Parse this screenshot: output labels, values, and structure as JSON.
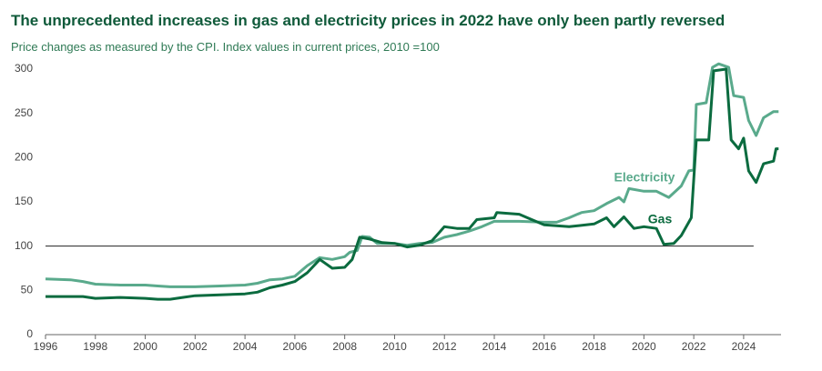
{
  "chart_data": {
    "type": "line",
    "title": "The unprecedented increases in gas and electricity prices in 2022 have only been partly reversed",
    "subtitle": "Price changes as measured by the CPI. Index values in current prices, 2010 =100",
    "xlim": [
      1996,
      2025.5
    ],
    "xticks": [
      1996,
      1998,
      2000,
      2002,
      2004,
      2006,
      2008,
      2010,
      2012,
      2014,
      2016,
      2018,
      2020,
      2022,
      2024
    ],
    "ylim": [
      0,
      300
    ],
    "yticks": [
      0,
      50,
      100,
      150,
      200,
      250,
      300
    ],
    "reference_line": {
      "y": 100,
      "x": [
        1996,
        2024.4
      ],
      "color": "#222222"
    },
    "series": [
      {
        "name": "Electricity",
        "color": "#5aaa8c",
        "x": [
          1996,
          1997,
          1997.5,
          1998,
          1999,
          2000,
          2000.5,
          2001,
          2002,
          2003,
          2004,
          2004.5,
          2005,
          2005.5,
          2006,
          2006.5,
          2007,
          2007.5,
          2008,
          2008.2,
          2008.5,
          2008.7,
          2009,
          2009.3,
          2010,
          2010.5,
          2011,
          2011.5,
          2012,
          2012.5,
          2013,
          2013.5,
          2014,
          2015,
          2016,
          2016.5,
          2017,
          2017.5,
          2018,
          2018.5,
          2019,
          2019.2,
          2019.4,
          2020,
          2020.5,
          2021,
          2021.5,
          2021.8,
          2022,
          2022.1,
          2022.5,
          2022.75,
          2023,
          2023.4,
          2023.6,
          2024,
          2024.2,
          2024.5,
          2024.8,
          2025.2,
          2025.4
        ],
        "values": [
          63,
          62,
          60,
          57,
          56,
          56,
          55,
          54,
          54,
          55,
          56,
          58,
          62,
          63,
          66,
          78,
          87,
          85,
          88,
          93,
          95,
          111,
          110,
          103,
          103,
          101,
          103,
          104,
          110,
          113,
          117,
          122,
          128,
          128,
          127,
          127,
          132,
          138,
          140,
          148,
          155,
          150,
          165,
          162,
          162,
          155,
          168,
          185,
          186,
          260,
          262,
          302,
          306,
          302,
          270,
          268,
          242,
          225,
          245,
          252,
          252
        ]
      },
      {
        "name": "Gas",
        "color": "#0b6b3f",
        "x": [
          1996,
          1997.5,
          1998,
          1999,
          2000,
          2000.5,
          2001,
          2001.5,
          2002,
          2003,
          2004,
          2004.5,
          2005,
          2005.5,
          2006,
          2006.5,
          2007,
          2007.5,
          2008,
          2008.3,
          2008.6,
          2009,
          2009.5,
          2010,
          2010.5,
          2011,
          2011.5,
          2012,
          2012.5,
          2013,
          2013.3,
          2014,
          2014.1,
          2015,
          2015.5,
          2016,
          2017,
          2018,
          2018.5,
          2018.8,
          2019.2,
          2019.6,
          2020,
          2020.5,
          2020.8,
          2021.2,
          2021.5,
          2021.9,
          2022.1,
          2022.6,
          2022.8,
          2023.3,
          2023.5,
          2023.8,
          2024,
          2024.2,
          2024.5,
          2024.8,
          2025.2,
          2025.3,
          2025.4
        ],
        "values": [
          43,
          43,
          41,
          42,
          41,
          40,
          40,
          42,
          44,
          45,
          46,
          48,
          53,
          56,
          60,
          70,
          85,
          75,
          76,
          85,
          110,
          108,
          104,
          103,
          99,
          101,
          106,
          122,
          120,
          120,
          130,
          132,
          138,
          136,
          130,
          124,
          122,
          125,
          132,
          122,
          133,
          120,
          122,
          120,
          102,
          103,
          112,
          132,
          220,
          220,
          298,
          300,
          220,
          210,
          222,
          185,
          172,
          193,
          196,
          210,
          210
        ]
      }
    ]
  }
}
